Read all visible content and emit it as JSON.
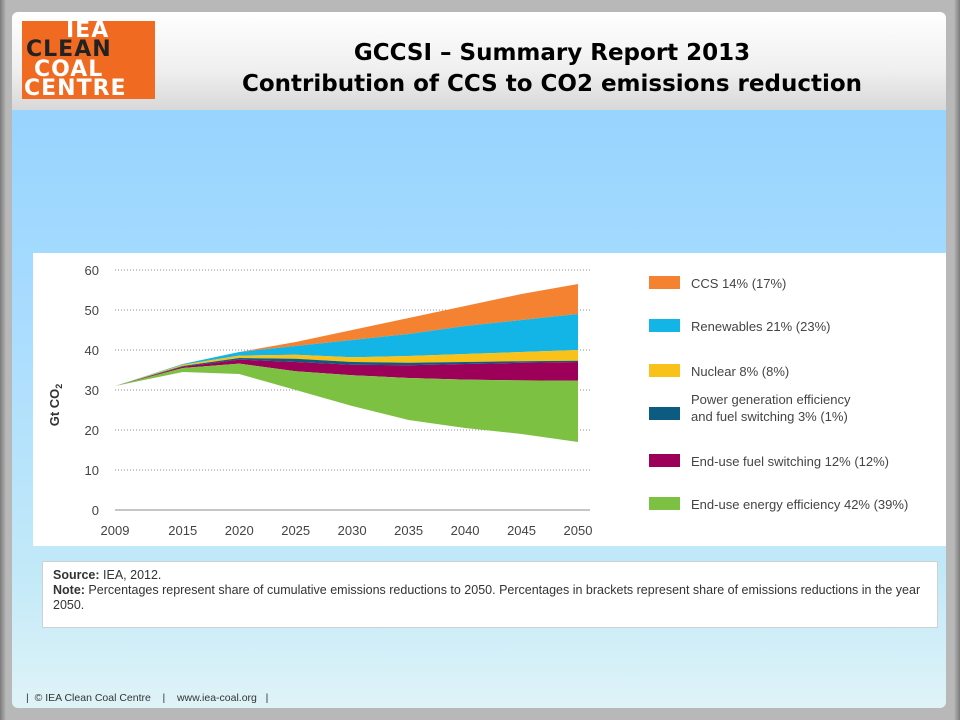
{
  "logo": {
    "lines": [
      "IEA",
      "CLEAN",
      "COAL",
      "CENTRE"
    ]
  },
  "title": {
    "line1": "GCCSI – Summary Report 2013",
    "line2": "Contribution of CCS to CO2 emissions reduction"
  },
  "source": {
    "label": "Source:",
    "text": " IEA, 2012.",
    "note_label": "Note:",
    "note_text": " Percentages represent share of cumulative emissions reductions to 2050. Percentages in brackets represent share of emissions reductions in the year 2050."
  },
  "footer": {
    "copyright": "© IEA Clean Coal Centre",
    "url": "www.iea-coal.org"
  },
  "chart_data": {
    "type": "area",
    "ylabel": "Gt CO",
    "ylabel_sub": "2",
    "ylim": [
      0,
      60
    ],
    "yticks": [
      0,
      10,
      20,
      30,
      40,
      50,
      60
    ],
    "x": [
      2009,
      2015,
      2020,
      2025,
      2030,
      2035,
      2040,
      2045,
      2050
    ],
    "x_labels": [
      "2009",
      "2015",
      "2020",
      "2025",
      "2030",
      "2035",
      "2040",
      "2045",
      "2050"
    ],
    "grid": true,
    "legend_position": "right",
    "baseline": [
      31,
      36.5,
      39.5,
      42,
      45,
      48,
      51,
      54,
      57
    ],
    "series": [
      {
        "name": "CCS 14% (17%)",
        "color": "#f58231",
        "top": [
          31,
          36.5,
          39.5,
          42,
          45,
          48,
          51,
          54,
          56.5
        ]
      },
      {
        "name": "Renewables 21% (23%)",
        "color": "#12b5e6",
        "top": [
          31,
          36.5,
          39.5,
          41,
          42.5,
          44,
          46,
          47.5,
          49
        ]
      },
      {
        "name": "Nuclear 8% (8%)",
        "color": "#f9c21a",
        "top": [
          31,
          36.3,
          38.6,
          38.8,
          38.2,
          38.5,
          39,
          39.5,
          40
        ]
      },
      {
        "name": "Power generation efficiency\nand fuel switching 3% (1%)",
        "color": "#0c5c82",
        "top": [
          31,
          36,
          38,
          37.8,
          37,
          36.8,
          37,
          37.2,
          37.3
        ]
      },
      {
        "name": "End-use fuel switching 12% (12%)",
        "color": "#9c0058",
        "top": [
          31,
          35.8,
          37.6,
          37,
          36.3,
          36.2,
          36.5,
          36.8,
          37
        ]
      },
      {
        "name": "End-use energy efficiency 42% (39%)",
        "color": "#7dc142",
        "top": [
          31,
          35.5,
          36.6,
          34.7,
          33.7,
          33,
          32.6,
          32.4,
          32.3
        ],
        "bottom": [
          31,
          34.5,
          34,
          30,
          26,
          22.5,
          20.5,
          19,
          17
        ]
      }
    ]
  }
}
